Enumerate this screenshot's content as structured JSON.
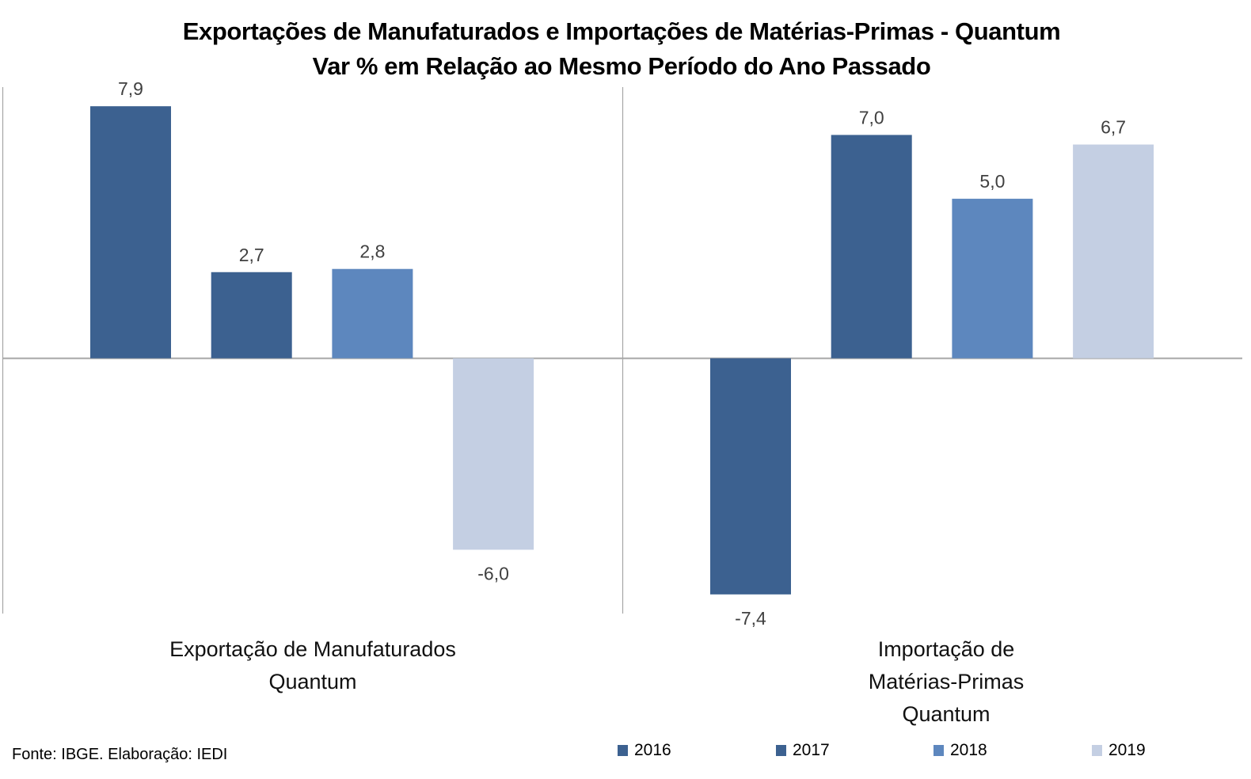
{
  "chart_data": {
    "type": "bar",
    "title": "Exportações de Manufaturados e Importações de Matérias-Primas - Quantum",
    "subtitle": "Var % em Relação ao Mesmo Período do Ano Passado",
    "xlabel": "",
    "ylabel": "",
    "categories": [
      [
        "Exportação de Manufaturados",
        "Quantum"
      ],
      [
        "Importação de",
        "Matérias-Primas",
        "Quantum"
      ]
    ],
    "series": [
      {
        "name": "2016",
        "color": "#3c6190",
        "values": [
          7.9,
          -7.4
        ],
        "labels": [
          "7,9",
          "-7,4"
        ]
      },
      {
        "name": "2017",
        "color": "#3c6190",
        "values": [
          2.7,
          7.0
        ],
        "labels": [
          "2,7",
          "7,0"
        ]
      },
      {
        "name": "2018",
        "color": "#5d87be",
        "values": [
          2.8,
          5.0
        ],
        "labels": [
          "2,8",
          "5,0"
        ]
      },
      {
        "name": "2019",
        "color": "#c4cfe3",
        "values": [
          -6.0,
          6.7
        ],
        "labels": [
          "-6,0",
          "6,7"
        ]
      }
    ],
    "ylim": [
      -8.0,
      8.5
    ],
    "grid": false,
    "legend": "bottom"
  },
  "source": "Fonte: IBGE. Elaboração: IEDI",
  "colors": {
    "axis": "#a6a6a6",
    "label_text": "#404040"
  }
}
